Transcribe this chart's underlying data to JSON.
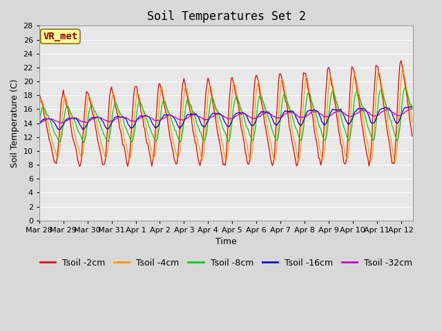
{
  "title": "Soil Temperatures Set 2",
  "xlabel": "Time",
  "ylabel": "Soil Temperature (C)",
  "annotation": "VR_met",
  "ylim": [
    0,
    28
  ],
  "yticks": [
    0,
    2,
    4,
    6,
    8,
    10,
    12,
    14,
    16,
    18,
    20,
    22,
    24,
    26,
    28
  ],
  "n_days": 15.5,
  "series_colors": [
    "#dd0000",
    "#ff9900",
    "#00cc00",
    "#0000bb",
    "#bb00bb"
  ],
  "series_labels": [
    "Tsoil -2cm",
    "Tsoil -4cm",
    "Tsoil -8cm",
    "Tsoil -16cm",
    "Tsoil -32cm"
  ],
  "bg_color": "#d8d8d8",
  "plot_bg_color": "#e8e8e8",
  "grid_color": "#ffffff",
  "date_labels": [
    "Mar 28",
    "Mar 29",
    "Mar 30",
    "Mar 31",
    "Apr 1",
    "Apr 2",
    "Apr 3",
    "Apr 4",
    "Apr 5",
    "Apr 6",
    "Apr 7",
    "Apr 8",
    "Apr 9",
    "Apr 10",
    "Apr 11",
    "Apr 12"
  ],
  "title_fontsize": 12,
  "label_fontsize": 9,
  "tick_fontsize": 8,
  "legend_fontsize": 9,
  "annotation_fontsize": 10,
  "figsize": [
    6.4,
    4.8
  ],
  "dpi": 100
}
